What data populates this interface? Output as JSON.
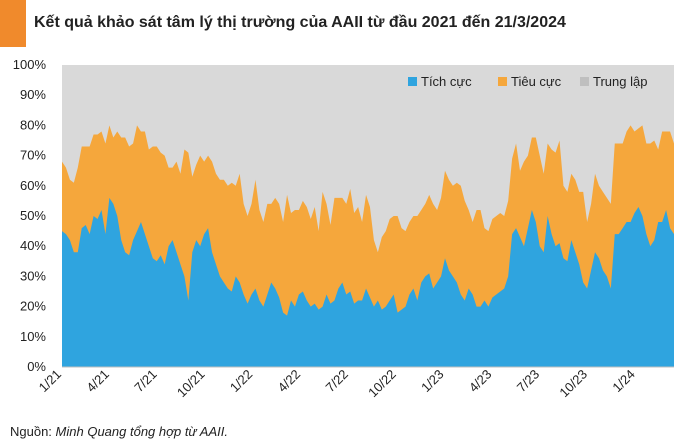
{
  "title": "Kết quả khảo sát tâm lý thị trường của AAII từ đầu 2021 đến 21/3/2024",
  "source": {
    "label": "Nguồn: ",
    "author": "Minh Quang tổng hợp từ AAII."
  },
  "colors": {
    "accent": "#f08a2c",
    "bullish": "#2fa4df",
    "bearish": "#f5a73c",
    "neutral": "#d9d9d9"
  },
  "chart_data": {
    "type": "area",
    "stacked": true,
    "x_tick_labels": [
      "1/21",
      "4/21",
      "7/21",
      "10/21",
      "1/22",
      "4/22",
      "7/22",
      "10/22",
      "1/23",
      "4/23",
      "7/23",
      "10/23",
      "1/24"
    ],
    "y_tick_labels": [
      "0%",
      "10%",
      "20%",
      "30%",
      "40%",
      "50%",
      "60%",
      "70%",
      "80%",
      "90%",
      "100%"
    ],
    "ylim": [
      0,
      100
    ],
    "legend_position": "top-right",
    "grid": false,
    "series": [
      {
        "name": "Tích cực",
        "color": "#2fa4df",
        "values": [
          45,
          44,
          42,
          38,
          38,
          46,
          47,
          44,
          50,
          49,
          52,
          44,
          56,
          54,
          50,
          42,
          38,
          37,
          42,
          45,
          48,
          44,
          40,
          36,
          35,
          37,
          34,
          40,
          42,
          38,
          34,
          30,
          22,
          38,
          42,
          40,
          44,
          46,
          38,
          34,
          30,
          28,
          26,
          25,
          30,
          28,
          24,
          21,
          24,
          26,
          22,
          20,
          24,
          28,
          26,
          23,
          18,
          17,
          22,
          20,
          24,
          25,
          22,
          20,
          21,
          19,
          20,
          24,
          21,
          22,
          26,
          28,
          24,
          25,
          21,
          22,
          22,
          26,
          23,
          20,
          22,
          19,
          20,
          22,
          24,
          18,
          19,
          20,
          24,
          26,
          22,
          28,
          30,
          31,
          26,
          28,
          30,
          36,
          32,
          30,
          28,
          24,
          22,
          26,
          24,
          20,
          20,
          22,
          20,
          23,
          24,
          25,
          26,
          30,
          44,
          46,
          43,
          40,
          46,
          52,
          48,
          40,
          38,
          50,
          44,
          40,
          41,
          36,
          35,
          42,
          38,
          34,
          28,
          26,
          32,
          38,
          36,
          32,
          30,
          26,
          44,
          44,
          46,
          48,
          48,
          51,
          53,
          50,
          44,
          40,
          42,
          48,
          48,
          52,
          46,
          44
        ]
      },
      {
        "name": "Tiêu cực",
        "color": "#f5a73c",
        "values": [
          23,
          22,
          20,
          23,
          28,
          27,
          26,
          29,
          27,
          28,
          26,
          30,
          24,
          22,
          28,
          34,
          38,
          36,
          32,
          35,
          30,
          34,
          32,
          37,
          38,
          34,
          36,
          26,
          24,
          30,
          30,
          42,
          49,
          25,
          25,
          30,
          24,
          24,
          30,
          30,
          32,
          34,
          34,
          36,
          30,
          36,
          30,
          29,
          30,
          36,
          30,
          28,
          30,
          26,
          30,
          31,
          30,
          40,
          29,
          32,
          28,
          30,
          31,
          29,
          32,
          26,
          38,
          30,
          26,
          34,
          30,
          28,
          30,
          34,
          30,
          31,
          26,
          31,
          30,
          22,
          16,
          24,
          25,
          27,
          26,
          32,
          27,
          25,
          24,
          24,
          28,
          24,
          24,
          26,
          28,
          24,
          26,
          29,
          30,
          30,
          33,
          36,
          33,
          26,
          24,
          32,
          32,
          24,
          25,
          26,
          26,
          26,
          24,
          25,
          25,
          28,
          22,
          28,
          24,
          24,
          28,
          30,
          26,
          24,
          28,
          31,
          34,
          24,
          23,
          22,
          24,
          24,
          30,
          22,
          22,
          26,
          24,
          26,
          26,
          28,
          30,
          30,
          28,
          30,
          32,
          27,
          26,
          30,
          30,
          34,
          33,
          24,
          30,
          26,
          32,
          30
        ]
      }
    ]
  }
}
